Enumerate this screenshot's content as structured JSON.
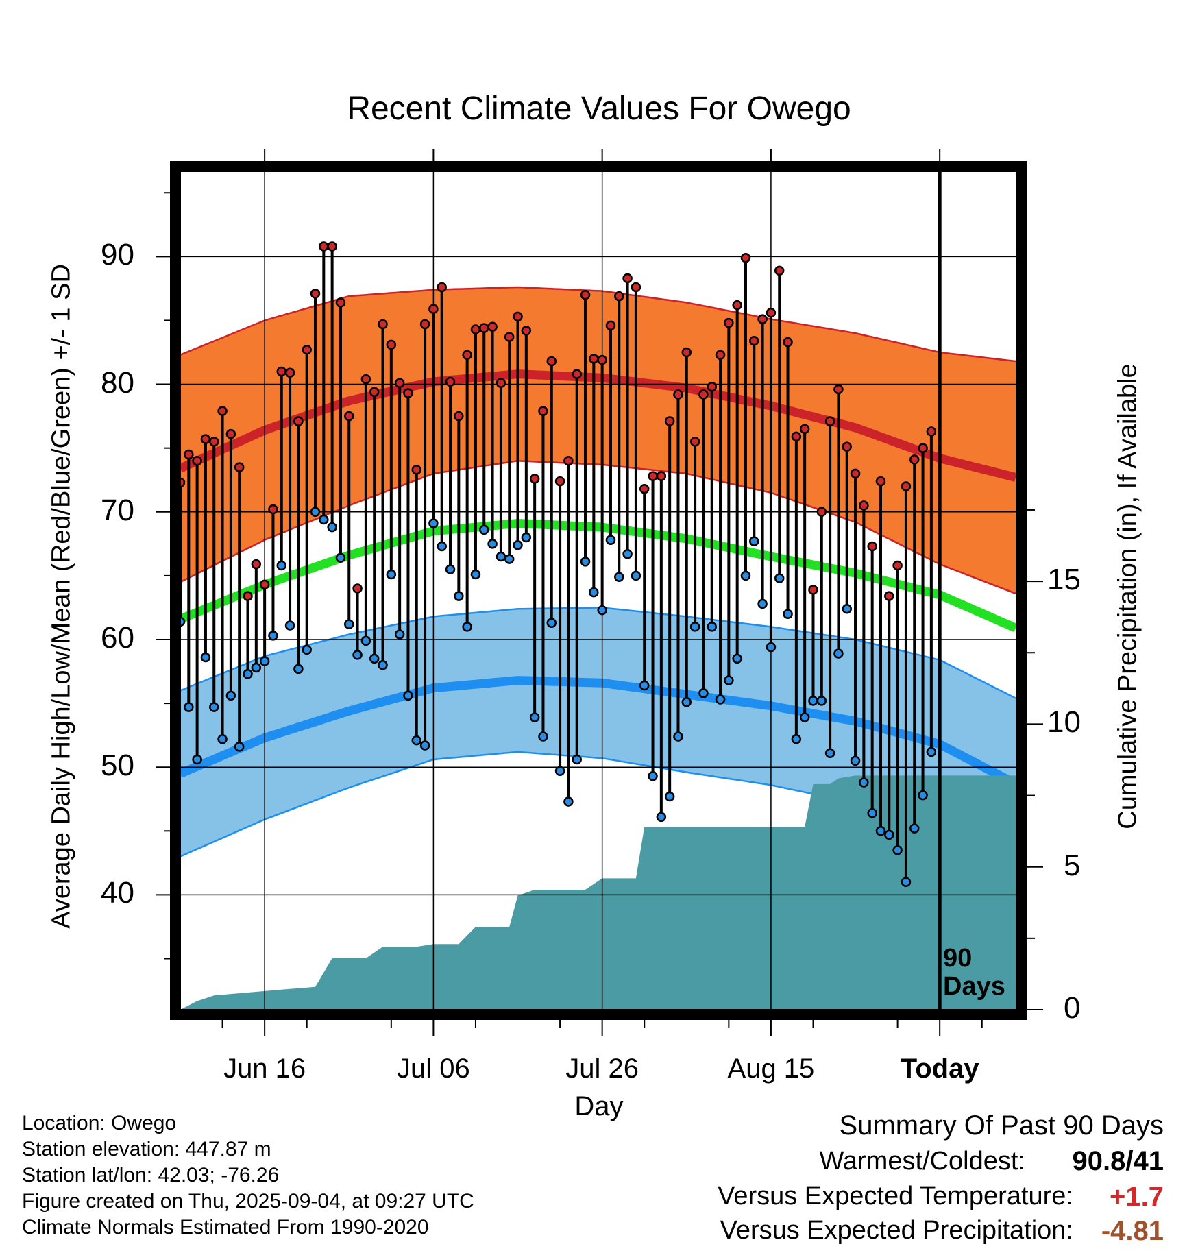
{
  "title": "Recent Climate Values For Owego",
  "y_axis_left_label": "Average Daily High/Low/Mean (Red/Blue/Green) +/- 1 SD",
  "y_axis_right_label": "Cumulative Precipitation (in), If Available",
  "x_axis_label": "Day",
  "window_label": "90 Days",
  "info": {
    "location": "Location: Owego",
    "elevation": "Station elevation: 447.87 m",
    "latlon": "Station lat/lon: 42.03; -76.26",
    "created": "Figure created on Thu, 2025-09-04, at 09:27 UTC",
    "normals": "Climate Normals Estimated From 1990-2020"
  },
  "summary": {
    "title": "Summary Of Past 90 Days",
    "warm_cold_label": "Warmest/Coldest:",
    "warm_cold_value": "90.8/41",
    "temp_label": "Versus Expected Temperature:",
    "temp_value": "+1.7",
    "precip_label": "Versus Expected Precipitation:",
    "precip_value": "-4.81"
  },
  "colors": {
    "high_obs": "#cc2a2a",
    "low_obs": "#2a8be0",
    "normal_high_band": "#f47a30",
    "normal_high_line": "#cc2229",
    "normal_low_band": "#86c2e8",
    "normal_low_line": "#1e8ff0",
    "normal_mean": "#22e022",
    "precip_fill": "#4a9ba4",
    "warm_value": "#d22a2a",
    "precip_value": "#a0522d"
  },
  "chart_data": {
    "type": "line",
    "x_tick_labels": [
      "Jun 16",
      "Jul 06",
      "Jul 26",
      "Aug 15",
      "Today"
    ],
    "x_tick_days": [
      10,
      30,
      50,
      70,
      90
    ],
    "y_left_range": [
      31,
      97
    ],
    "y_left_ticks": [
      40,
      50,
      60,
      70,
      80,
      90
    ],
    "y_right_range": [
      0,
      29.5
    ],
    "y_right_ticks": [
      0,
      5,
      10,
      15
    ],
    "x_range": [
      0,
      99
    ],
    "today_day": 90,
    "grid": true,
    "daily_high": [
      72.3,
      74.5,
      74.0,
      75.7,
      75.5,
      77.9,
      76.1,
      73.5,
      63.4,
      65.9,
      64.3,
      70.2,
      81.0,
      80.9,
      77.1,
      82.7,
      87.1,
      90.8,
      90.8,
      86.4,
      77.5,
      64.0,
      80.4,
      79.4,
      84.7,
      83.1,
      80.1,
      79.3,
      73.3,
      84.7,
      85.9,
      87.6,
      80.2,
      77.5,
      82.3,
      84.3,
      84.4,
      84.5,
      80.1,
      83.7,
      85.3,
      84.2,
      72.6,
      77.9,
      81.8,
      72.4,
      74.0,
      80.8,
      87.0,
      82.0,
      81.9,
      84.6,
      86.9,
      88.3,
      87.6,
      71.8,
      72.8,
      72.8,
      77.1,
      79.2,
      82.5,
      75.5,
      79.2,
      79.8,
      82.3,
      84.8,
      86.2,
      89.9,
      83.4,
      85.1,
      85.6,
      88.9,
      83.3,
      75.9,
      76.5,
      63.9,
      70.0,
      77.1,
      79.6,
      75.1,
      73.0,
      70.5,
      67.3,
      72.4,
      63.4,
      65.8,
      72.0,
      74.1,
      75.0,
      76.3
    ],
    "daily_low": [
      61.4,
      54.7,
      50.6,
      58.6,
      54.7,
      52.2,
      55.6,
      51.6,
      57.3,
      57.8,
      58.3,
      60.3,
      65.8,
      61.1,
      57.7,
      59.2,
      70.0,
      69.4,
      68.8,
      66.4,
      61.2,
      58.8,
      59.9,
      58.5,
      58.0,
      65.1,
      60.4,
      55.6,
      52.1,
      51.7,
      69.1,
      67.3,
      65.5,
      63.4,
      61.0,
      65.1,
      68.6,
      67.5,
      66.5,
      66.3,
      67.4,
      68.0,
      53.9,
      52.4,
      61.3,
      49.7,
      47.3,
      50.6,
      66.1,
      63.7,
      62.3,
      67.8,
      64.9,
      66.7,
      65.0,
      56.4,
      49.3,
      46.1,
      47.7,
      52.4,
      55.1,
      61.0,
      55.8,
      61.0,
      55.3,
      56.8,
      58.5,
      65.0,
      67.7,
      62.8,
      59.4,
      64.8,
      62.0,
      52.2,
      53.9,
      55.2,
      55.2,
      51.1,
      58.9,
      62.4,
      50.5,
      48.8,
      46.4,
      45.0,
      44.7,
      43.5,
      41.0,
      45.2,
      47.8,
      51.2
    ],
    "normals": {
      "days": [
        0,
        10,
        20,
        30,
        40,
        50,
        60,
        70,
        80,
        90,
        99
      ],
      "high_mean": [
        73.4,
        76.4,
        78.7,
        80.2,
        80.8,
        80.5,
        79.7,
        78.3,
        76.6,
        74.2,
        72.7
      ],
      "high_sd": [
        8.9,
        8.6,
        8.2,
        7.2,
        6.8,
        6.8,
        6.7,
        6.8,
        7.4,
        8.3,
        9.1
      ],
      "mean": [
        61.6,
        64.3,
        66.6,
        68.5,
        69.1,
        68.8,
        67.9,
        66.5,
        65.2,
        63.5,
        60.9
      ],
      "low_mean": [
        49.5,
        52.3,
        54.4,
        56.2,
        56.8,
        56.6,
        55.7,
        54.8,
        53.6,
        51.8,
        48.7
      ],
      "low_sd": [
        6.5,
        6.4,
        6.0,
        5.6,
        5.6,
        5.9,
        6.1,
        6.2,
        6.4,
        6.6,
        6.7
      ]
    },
    "precipitation_cumulative": {
      "days": [
        0,
        2,
        4,
        8,
        12,
        16,
        18,
        22,
        24,
        28,
        30,
        33,
        35,
        39,
        40,
        42,
        48,
        50,
        54,
        55,
        66,
        74,
        75,
        77,
        78,
        80,
        99
      ],
      "values": [
        0.0,
        0.3,
        0.5,
        0.6,
        0.7,
        0.8,
        1.8,
        1.8,
        2.2,
        2.2,
        2.3,
        2.3,
        2.9,
        2.9,
        4.0,
        4.2,
        4.2,
        4.6,
        4.6,
        6.4,
        6.4,
        6.4,
        7.9,
        7.9,
        8.1,
        8.2,
        8.2
      ]
    }
  }
}
